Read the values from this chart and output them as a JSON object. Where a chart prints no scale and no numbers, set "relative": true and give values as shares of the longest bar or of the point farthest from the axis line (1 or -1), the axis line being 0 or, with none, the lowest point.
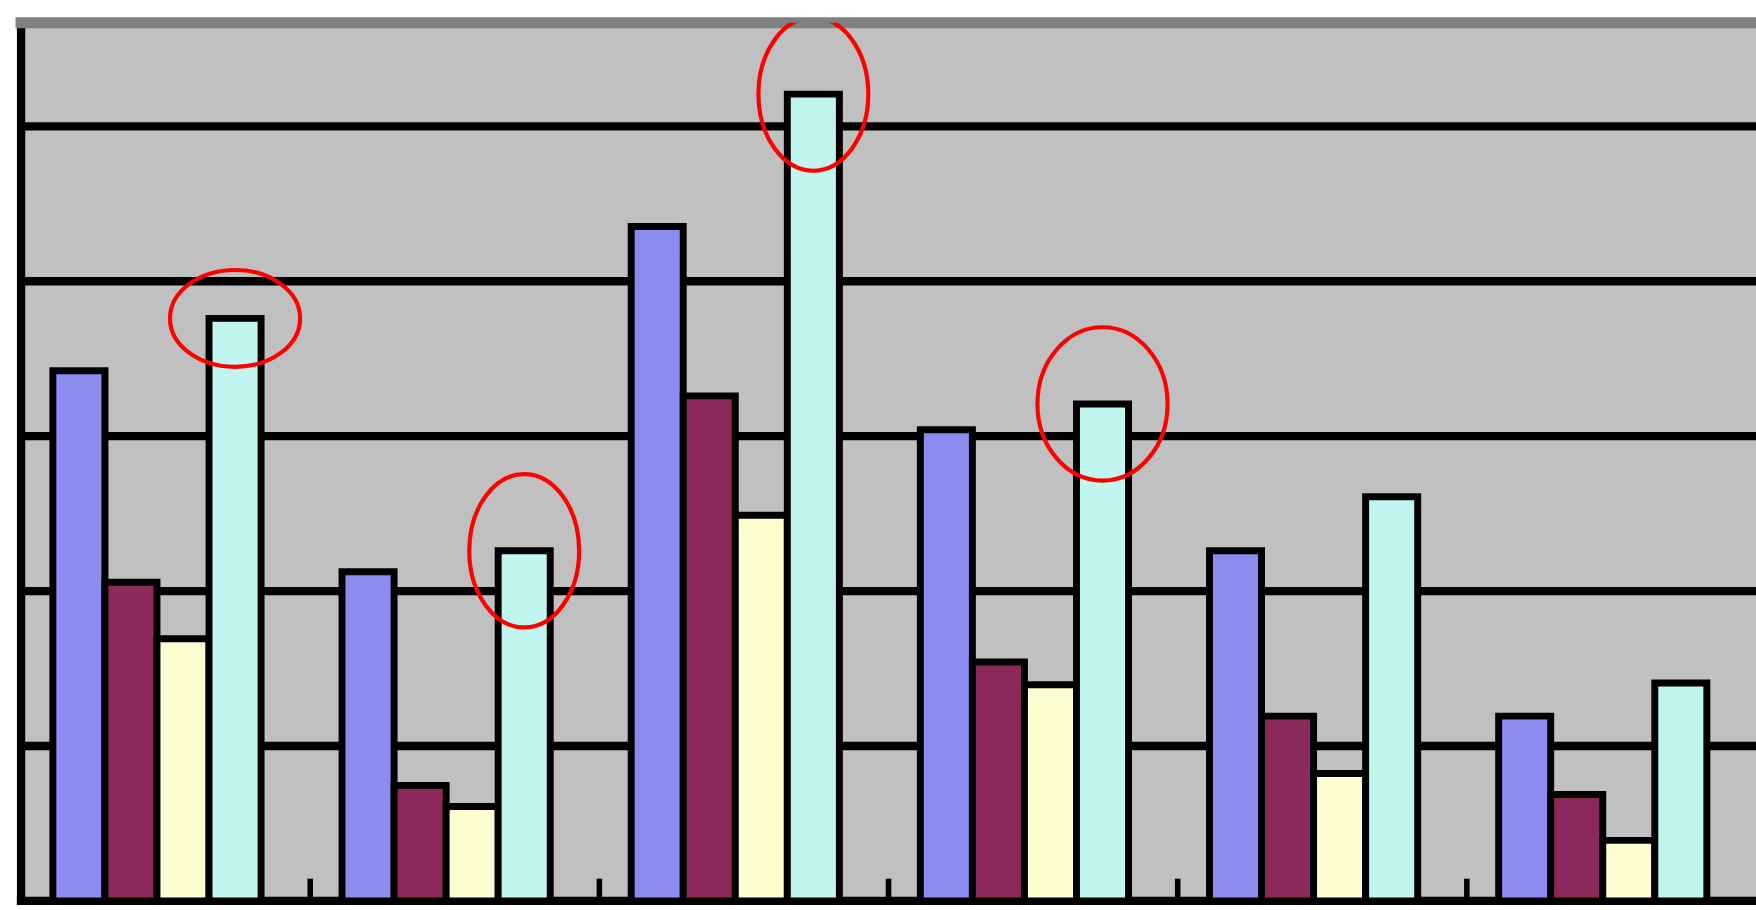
{
  "chart_data": {
    "type": "bar",
    "relative": true,
    "grid": "y",
    "categories": [
      null,
      null,
      null,
      null,
      null,
      null
    ],
    "series": [
      {
        "color": "#8c8cf0",
        "values": [
          0.657,
          0.408,
          0.836,
          0.584,
          0.434,
          0.229
        ]
      },
      {
        "color": "#8b2a5a",
        "values": [
          0.395,
          0.143,
          0.626,
          0.296,
          0.229,
          0.132
        ]
      },
      {
        "color": "#fefed0",
        "values": [
          0.325,
          0.117,
          0.478,
          0.268,
          0.158,
          0.075
        ]
      },
      {
        "color": "#c0f5f0",
        "values": [
          0.722,
          0.434,
          1,
          0.616,
          0.501,
          0.27
        ]
      }
    ]
  }
}
